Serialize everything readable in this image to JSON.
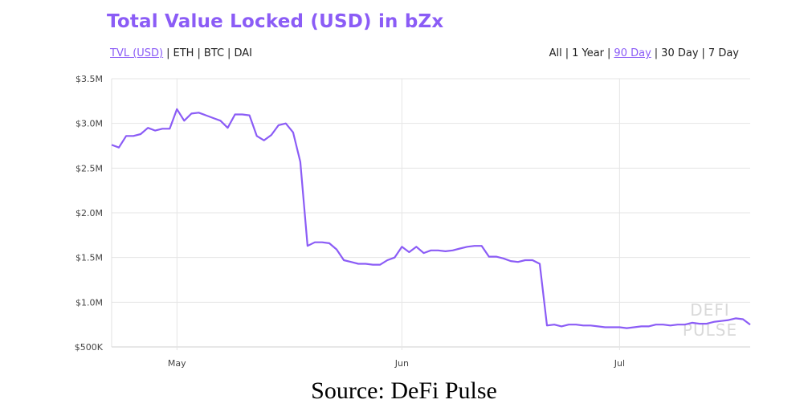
{
  "title": "Total Value Locked (USD) in bZx",
  "metric_tabs": [
    {
      "label": "TVL (USD)",
      "active": true
    },
    {
      "label": "ETH",
      "active": false
    },
    {
      "label": "BTC",
      "active": false
    },
    {
      "label": "DAI",
      "active": false
    }
  ],
  "range_tabs": [
    {
      "label": "All",
      "active": false
    },
    {
      "label": "1 Year",
      "active": false
    },
    {
      "label": "90 Day",
      "active": true
    },
    {
      "label": "30 Day",
      "active": false
    },
    {
      "label": "7 Day",
      "active": false
    }
  ],
  "caption": "Source: DeFi Pulse",
  "watermark": [
    "DEFI",
    "PULSE"
  ],
  "colors": {
    "accent": "#8b5cf6",
    "grid": "#e5e5e5",
    "line": "#8b5cf6"
  },
  "chart_data": {
    "type": "line",
    "title": "Total Value Locked (USD) in bZx",
    "xlabel": "",
    "ylabel": "",
    "x_ticks": [
      {
        "label": "May",
        "x": 9
      },
      {
        "label": "Jun",
        "x": 40
      },
      {
        "label": "Jul",
        "x": 70
      }
    ],
    "y_ticks": [
      "$500K",
      "$1.0M",
      "$1.5M",
      "$2.0M",
      "$2.5M",
      "$3.0M",
      "$3.5M"
    ],
    "y_tick_values": [
      0.5,
      1.0,
      1.5,
      2.0,
      2.5,
      3.0,
      3.5
    ],
    "ylim": [
      0.5,
      3.5
    ],
    "xlim": [
      0,
      88
    ],
    "grid": true,
    "series": [
      {
        "x": [
          0,
          1,
          2,
          3,
          4,
          5,
          6,
          7,
          8,
          9,
          10,
          11,
          12,
          13,
          14,
          15,
          16,
          17,
          18,
          19,
          20,
          21,
          22,
          23,
          24,
          25,
          26,
          27,
          28,
          29,
          30,
          31,
          32,
          33,
          34,
          35,
          36,
          37,
          38,
          39,
          40,
          41,
          42,
          43,
          44,
          45,
          46,
          47,
          48,
          49,
          50,
          51,
          52,
          53,
          54,
          55,
          56,
          57,
          58,
          59,
          60,
          61,
          62,
          63,
          64,
          65,
          66,
          67,
          68,
          69,
          70,
          71,
          72,
          73,
          74,
          75,
          76,
          77,
          78,
          79,
          80,
          81,
          82,
          83,
          84,
          85,
          86,
          87,
          88
        ],
        "values": [
          2.76,
          2.73,
          2.86,
          2.86,
          2.88,
          2.95,
          2.92,
          2.94,
          2.94,
          3.16,
          3.03,
          3.11,
          3.12,
          3.09,
          3.06,
          3.03,
          2.95,
          3.1,
          3.1,
          3.09,
          2.86,
          2.81,
          2.87,
          2.98,
          3.0,
          2.9,
          2.57,
          1.63,
          1.67,
          1.67,
          1.66,
          1.59,
          1.47,
          1.45,
          1.43,
          1.43,
          1.42,
          1.42,
          1.47,
          1.5,
          1.62,
          1.56,
          1.62,
          1.55,
          1.58,
          1.58,
          1.57,
          1.58,
          1.6,
          1.62,
          1.63,
          1.63,
          1.51,
          1.51,
          1.49,
          1.46,
          1.45,
          1.47,
          1.47,
          1.43,
          0.74,
          0.75,
          0.73,
          0.75,
          0.75,
          0.74,
          0.74,
          0.73,
          0.72,
          0.72,
          0.72,
          0.71,
          0.72,
          0.73,
          0.73,
          0.75,
          0.75,
          0.74,
          0.75,
          0.75,
          0.77,
          0.76,
          0.76,
          0.78,
          0.79,
          0.8,
          0.82,
          0.81,
          0.75
        ]
      }
    ]
  }
}
